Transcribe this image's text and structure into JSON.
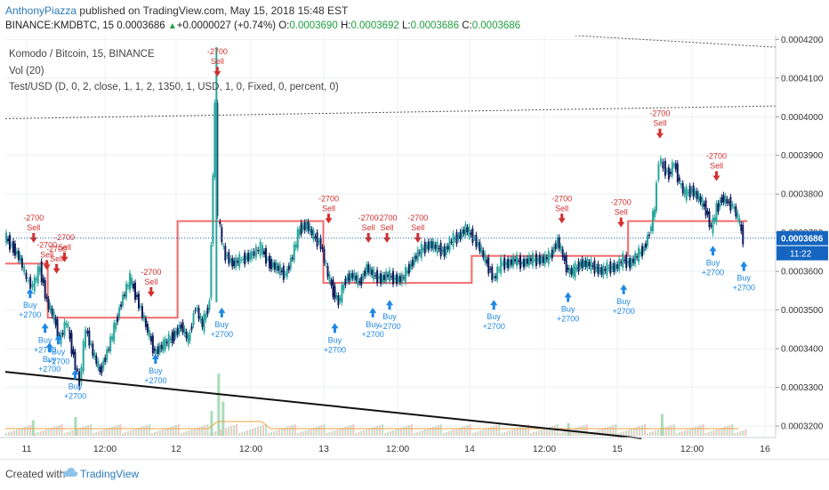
{
  "header": {
    "author": "AnthonyPiazza",
    "published": " published on TradingView.com, May 15, 2018 15:48 EST",
    "symbol": "BINANCE:KMDBTC, 15",
    "last": "0.0003686",
    "change": "+0.0000027 (+0.74%)",
    "o_label": "O:",
    "o_value": "0.0003690",
    "h_label": "H:",
    "h_value": "0.0003692",
    "l_label": "L:",
    "l_value": "0.0003686",
    "c_label": "C:",
    "c_value": "0.0003686"
  },
  "legend": {
    "line1": "Komodo / Bitcoin, 15, BINANCE",
    "line2": "Vol (20)",
    "line3": "Test/USD (D, 0, 2, close, 1, 1, 2, 1350, 1, USD, 1, 0, Fixed, 0, percent, 0)"
  },
  "footer": {
    "created": "Created with",
    "brand": "TradingView"
  },
  "colors": {
    "up": "#26a69a",
    "down": "#0d1b5c",
    "sell": "#d32f2f",
    "buy": "#1e88e5",
    "level": "#f26b6b",
    "trend": "#111111"
  },
  "chart_data": {
    "type": "candlestick",
    "ylim": [
      0.000317,
      0.000421
    ],
    "yticks": [
      "0.0004200",
      "0.0004100",
      "0.0004000",
      "0.0003900",
      "0.0003800",
      "0.0003700",
      "0.0003600",
      "0.0003500",
      "0.0003400",
      "0.0003300",
      "0.0003200"
    ],
    "xticks": [
      "11",
      "12:00",
      "12",
      "12:00",
      "13",
      "12:00",
      "14",
      "12:00",
      "15",
      "12:00",
      "16"
    ],
    "last_price_label": "0.0003686",
    "countdown_label": "11:22",
    "price_path": [
      [
        0,
        0.000369
      ],
      [
        10,
        0.000366
      ],
      [
        18,
        0.000363
      ],
      [
        25,
        0.000358
      ],
      [
        32,
        0.000356
      ],
      [
        40,
        0.000361
      ],
      [
        48,
        0.000352
      ],
      [
        56,
        0.000348
      ],
      [
        62,
        0.000342
      ],
      [
        70,
        0.000347
      ],
      [
        78,
        0.000338
      ],
      [
        85,
        0.000331
      ],
      [
        92,
        0.000345
      ],
      [
        100,
        0.000339
      ],
      [
        108,
        0.000334
      ],
      [
        116,
        0.000339
      ],
      [
        124,
        0.000345
      ],
      [
        132,
        0.000352
      ],
      [
        142,
        0.000358
      ],
      [
        150,
        0.000353
      ],
      [
        160,
        0.000346
      ],
      [
        170,
        0.000339
      ],
      [
        180,
        0.000341
      ],
      [
        190,
        0.000343
      ],
      [
        200,
        0.000346
      ],
      [
        208,
        0.000342
      ],
      [
        216,
        0.000351
      ],
      [
        224,
        0.000346
      ],
      [
        232,
        0.000352
      ],
      [
        236,
        0.000384
      ],
      [
        239,
        0.000404
      ],
      [
        242,
        0.000374
      ],
      [
        248,
        0.000365
      ],
      [
        258,
        0.000362
      ],
      [
        268,
        0.000363
      ],
      [
        278,
        0.000364
      ],
      [
        290,
        0.000366
      ],
      [
        300,
        0.000362
      ],
      [
        308,
        0.000361
      ],
      [
        318,
        0.000359
      ],
      [
        326,
        0.000364
      ],
      [
        334,
        0.000371
      ],
      [
        342,
        0.000372
      ],
      [
        350,
        0.000369
      ],
      [
        358,
        0.000367
      ],
      [
        366,
        0.000359
      ],
      [
        372,
        0.000355
      ],
      [
        378,
        0.000352
      ],
      [
        386,
        0.000358
      ],
      [
        394,
        0.000359
      ],
      [
        402,
        0.000357
      ],
      [
        410,
        0.000361
      ],
      [
        418,
        0.000359
      ],
      [
        426,
        0.000358
      ],
      [
        434,
        0.000359
      ],
      [
        442,
        0.000358
      ],
      [
        450,
        0.000358
      ],
      [
        458,
        0.000361
      ],
      [
        466,
        0.000364
      ],
      [
        474,
        0.000366
      ],
      [
        482,
        0.000367
      ],
      [
        490,
        0.000366
      ],
      [
        498,
        0.000365
      ],
      [
        506,
        0.000368
      ],
      [
        514,
        0.000369
      ],
      [
        522,
        0.000371
      ],
      [
        530,
        0.000369
      ],
      [
        538,
        0.000366
      ],
      [
        546,
        0.000362
      ],
      [
        554,
        0.000358
      ],
      [
        562,
        0.000362
      ],
      [
        570,
        0.000362
      ],
      [
        578,
        0.000363
      ],
      [
        586,
        0.000362
      ],
      [
        594,
        0.000363
      ],
      [
        602,
        0.000363
      ],
      [
        610,
        0.000363
      ],
      [
        618,
        0.000364
      ],
      [
        626,
        0.000368
      ],
      [
        632,
        0.000364
      ],
      [
        638,
        0.00036
      ],
      [
        644,
        0.00036
      ],
      [
        652,
        0.000362
      ],
      [
        660,
        0.000362
      ],
      [
        668,
        0.000361
      ],
      [
        676,
        0.00036
      ],
      [
        684,
        0.000361
      ],
      [
        692,
        0.000361
      ],
      [
        700,
        0.000363
      ],
      [
        708,
        0.000362
      ],
      [
        716,
        0.000364
      ],
      [
        724,
        0.000366
      ],
      [
        730,
        0.00037
      ],
      [
        736,
        0.000376
      ],
      [
        741,
        0.000389
      ],
      [
        746,
        0.000387
      ],
      [
        752,
        0.000385
      ],
      [
        758,
        0.000388
      ],
      [
        764,
        0.000383
      ],
      [
        770,
        0.00038
      ],
      [
        778,
        0.000381
      ],
      [
        786,
        0.000379
      ],
      [
        794,
        0.000376
      ],
      [
        800,
        0.000371
      ],
      [
        806,
        0.000376
      ],
      [
        812,
        0.000379
      ],
      [
        818,
        0.000378
      ],
      [
        824,
        0.000377
      ],
      [
        830,
        0.000374
      ],
      [
        836,
        0.0003686
      ]
    ],
    "levels": [
      [
        0,
        0.000362,
        0.000362
      ],
      [
        48,
        0.000362,
        0.000348
      ],
      [
        48,
        0.000348,
        0.000348
      ],
      [
        195,
        0.000348,
        0.000373
      ],
      [
        195,
        0.000373,
        0.000373
      ],
      [
        360,
        0.000373,
        0.000357
      ],
      [
        360,
        0.000357,
        0.000357
      ],
      [
        528,
        0.000357,
        0.000364
      ],
      [
        528,
        0.000364,
        0.000364
      ],
      [
        705,
        0.000364,
        0.000373
      ],
      [
        705,
        0.000373,
        0.000373
      ],
      [
        840,
        0.000373,
        0.000373
      ]
    ],
    "trendline": [
      [
        0,
        0.000334
      ],
      [
        720,
        0.0003168
      ]
    ],
    "channel_upper": [
      [
        0,
        0.0003995
      ],
      [
        872,
        0.0004028
      ]
    ],
    "channel_top": [
      [
        645,
        0.000421
      ],
      [
        872,
        0.000418
      ]
    ],
    "signals": [
      {
        "kind": "sell",
        "x": 32,
        "label_top": "-2700",
        "label_bottom": "Sell",
        "price": 0.000366
      },
      {
        "kind": "sell",
        "x": 47,
        "label_top": "-2700",
        "label_bottom": "Sell",
        "price": 0.000359
      },
      {
        "kind": "sell",
        "x": 58,
        "label_top": "-2700",
        "label_bottom": "Sell",
        "price": 0.000358
      },
      {
        "kind": "sell",
        "x": 67,
        "label_top": "-2700",
        "label_bottom": "Sell",
        "price": 0.000361
      },
      {
        "kind": "sell",
        "x": 165,
        "label_top": "-2700",
        "label_bottom": "Sell",
        "price": 0.000352
      },
      {
        "kind": "sell",
        "x": 240,
        "label_top": "-2700",
        "label_bottom": "Sell",
        "price": 0.000409
      },
      {
        "kind": "sell",
        "x": 366,
        "label_top": "-2700",
        "label_bottom": "Sell",
        "price": 0.000371
      },
      {
        "kind": "sell",
        "x": 411,
        "label_top": "-2700",
        "label_bottom": "Sell",
        "price": 0.000366
      },
      {
        "kind": "sell",
        "x": 432,
        "label_top": "-2700",
        "label_bottom": "Sell",
        "price": 0.000366
      },
      {
        "kind": "sell",
        "x": 467,
        "label_top": "-2700",
        "label_bottom": "Sell",
        "price": 0.000366
      },
      {
        "kind": "sell",
        "x": 630,
        "label_top": "-2700",
        "label_bottom": "Sell",
        "price": 0.000371
      },
      {
        "kind": "sell",
        "x": 697,
        "label_top": "-2700",
        "label_bottom": "Sell",
        "price": 0.00037
      },
      {
        "kind": "sell",
        "x": 741,
        "label_top": "-2700",
        "label_bottom": "Sell",
        "price": 0.000393
      },
      {
        "kind": "sell",
        "x": 805,
        "label_top": "-2700",
        "label_bottom": "Sell",
        "price": 0.000382
      },
      {
        "kind": "buy",
        "x": 28,
        "label_top": "Buy",
        "label_bottom": "+2700",
        "price": 0.000357
      },
      {
        "kind": "buy",
        "x": 45,
        "label_top": "Buy",
        "label_bottom": "+2700",
        "price": 0.000348
      },
      {
        "kind": "buy",
        "x": 60,
        "label_top": "Buy",
        "label_bottom": "+2700",
        "price": 0.000345
      },
      {
        "kind": "buy",
        "x": 50,
        "label_top": "Buy",
        "label_bottom": "+2700",
        "price": 0.000343
      },
      {
        "kind": "buy",
        "x": 79,
        "label_top": "Buy",
        "label_bottom": "+2700",
        "price": 0.000336
      },
      {
        "kind": "buy",
        "x": 170,
        "label_top": "Buy",
        "label_bottom": "+2700",
        "price": 0.00034
      },
      {
        "kind": "buy",
        "x": 245,
        "label_top": "Buy",
        "label_bottom": "+2700",
        "price": 0.000352
      },
      {
        "kind": "buy",
        "x": 373,
        "label_top": "Buy",
        "label_bottom": "+2700",
        "price": 0.000348
      },
      {
        "kind": "buy",
        "x": 416,
        "label_top": "Buy",
        "label_bottom": "+2700",
        "price": 0.000352
      },
      {
        "kind": "buy",
        "x": 435,
        "label_top": "Buy",
        "label_bottom": "+2700",
        "price": 0.000354
      },
      {
        "kind": "buy",
        "x": 553,
        "label_top": "Buy",
        "label_bottom": "+2700",
        "price": 0.000354
      },
      {
        "kind": "buy",
        "x": 637,
        "label_top": "Buy",
        "label_bottom": "+2700",
        "price": 0.000356
      },
      {
        "kind": "buy",
        "x": 700,
        "label_top": "Buy",
        "label_bottom": "+2700",
        "price": 0.000358
      },
      {
        "kind": "buy",
        "x": 801,
        "label_top": "Buy",
        "label_bottom": "+2700",
        "price": 0.000368
      },
      {
        "kind": "buy",
        "x": 836,
        "label_top": "Buy",
        "label_bottom": "+2700",
        "price": 0.000364
      }
    ],
    "volume_spikes": [
      [
        240,
        1.0
      ],
      [
        245,
        0.55
      ],
      [
        30,
        0.25
      ],
      [
        78,
        0.3
      ],
      [
        232,
        0.4
      ],
      [
        742,
        0.35
      ],
      [
        636,
        0.2
      ]
    ]
  }
}
